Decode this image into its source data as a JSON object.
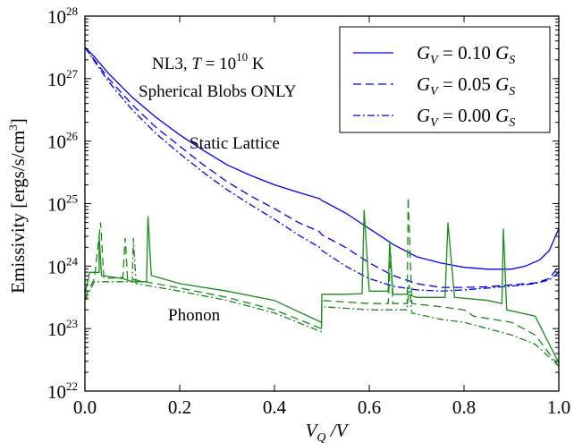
{
  "chart_data": {
    "type": "line",
    "title": "",
    "xlabel": {
      "main": "V",
      "sub": "Q",
      "suffix": " /V"
    },
    "ylabel": {
      "main": "Emissivity [ergs/s/cm",
      "sup": "3",
      "end": "]"
    },
    "xlim": [
      0.0,
      1.0
    ],
    "ylim_log10": [
      22,
      28
    ],
    "yscale": "log",
    "xticks": [
      "0.0",
      "0.2",
      "0.4",
      "0.6",
      "0.8",
      "1.0"
    ],
    "yticks": [
      {
        "base": "10",
        "exp": "22"
      },
      {
        "base": "10",
        "exp": "23"
      },
      {
        "base": "10",
        "exp": "24"
      },
      {
        "base": "10",
        "exp": "25"
      },
      {
        "base": "10",
        "exp": "26"
      },
      {
        "base": "10",
        "exp": "27"
      },
      {
        "base": "10",
        "exp": "28"
      }
    ],
    "annotations": {
      "model": {
        "prefix": "NL3, ",
        "var": "T",
        "eq": " = 10",
        "exp": "10",
        "unit": " K"
      },
      "shape": "Spherical Blobs ONLY",
      "static": "Static Lattice",
      "phonon": "Phonon"
    },
    "legend": {
      "position": "top-right",
      "entries": [
        {
          "lhs": "G",
          "lhs_sub": "V",
          "mid": " = 0.10 ",
          "rhs": "G",
          "rhs_sub": "S",
          "style": "solid"
        },
        {
          "lhs": "G",
          "lhs_sub": "V",
          "mid": " = 0.05 ",
          "rhs": "G",
          "rhs_sub": "S",
          "style": "dashed"
        },
        {
          "lhs": "G",
          "lhs_sub": "V",
          "mid": " = 0.00 ",
          "rhs": "G",
          "rhs_sub": "S",
          "style": "dashdot"
        }
      ]
    },
    "colors": {
      "static_lattice": "#0000ee",
      "phonon": "#1a8a1a"
    },
    "series": [
      {
        "group": "static",
        "style": "solid",
        "color": "#0000ee",
        "points": [
          [
            0.0,
            27.5
          ],
          [
            0.02,
            27.35
          ],
          [
            0.05,
            27.08
          ],
          [
            0.1,
            26.7
          ],
          [
            0.15,
            26.38
          ],
          [
            0.2,
            26.1
          ],
          [
            0.25,
            25.85
          ],
          [
            0.3,
            25.62
          ],
          [
            0.35,
            25.45
          ],
          [
            0.4,
            25.3
          ],
          [
            0.45,
            25.18
          ],
          [
            0.495,
            25.08
          ],
          [
            0.5,
            25.05
          ],
          [
            0.55,
            24.85
          ],
          [
            0.6,
            24.6
          ],
          [
            0.65,
            24.35
          ],
          [
            0.7,
            24.15
          ],
          [
            0.75,
            24.05
          ],
          [
            0.8,
            23.98
          ],
          [
            0.85,
            23.95
          ],
          [
            0.9,
            23.95
          ],
          [
            0.93,
            24.0
          ],
          [
            0.96,
            24.1
          ],
          [
            0.98,
            24.25
          ],
          [
            1.0,
            24.6
          ]
        ]
      },
      {
        "group": "static",
        "style": "dashed",
        "color": "#0000ee",
        "points": [
          [
            0.0,
            27.5
          ],
          [
            0.02,
            27.3
          ],
          [
            0.05,
            27.0
          ],
          [
            0.1,
            26.58
          ],
          [
            0.15,
            26.22
          ],
          [
            0.2,
            25.92
          ],
          [
            0.25,
            25.62
          ],
          [
            0.3,
            25.35
          ],
          [
            0.35,
            25.12
          ],
          [
            0.4,
            24.92
          ],
          [
            0.45,
            24.7
          ],
          [
            0.495,
            24.55
          ],
          [
            0.5,
            24.5
          ],
          [
            0.55,
            24.3
          ],
          [
            0.6,
            24.05
          ],
          [
            0.65,
            23.85
          ],
          [
            0.7,
            23.72
          ],
          [
            0.75,
            23.66
          ],
          [
            0.8,
            23.66
          ],
          [
            0.85,
            23.67
          ],
          [
            0.9,
            23.7
          ],
          [
            0.95,
            23.73
          ],
          [
            0.98,
            23.8
          ],
          [
            1.0,
            24.0
          ]
        ]
      },
      {
        "group": "static",
        "style": "dashdot",
        "color": "#0000ee",
        "points": [
          [
            0.0,
            27.5
          ],
          [
            0.02,
            27.28
          ],
          [
            0.05,
            26.95
          ],
          [
            0.1,
            26.5
          ],
          [
            0.15,
            26.12
          ],
          [
            0.2,
            25.8
          ],
          [
            0.25,
            25.5
          ],
          [
            0.3,
            25.22
          ],
          [
            0.35,
            24.98
          ],
          [
            0.4,
            24.75
          ],
          [
            0.45,
            24.5
          ],
          [
            0.495,
            24.3
          ],
          [
            0.5,
            24.25
          ],
          [
            0.55,
            24.0
          ],
          [
            0.6,
            23.8
          ],
          [
            0.65,
            23.68
          ],
          [
            0.7,
            23.62
          ],
          [
            0.75,
            23.6
          ],
          [
            0.8,
            23.62
          ],
          [
            0.85,
            23.65
          ],
          [
            0.9,
            23.68
          ],
          [
            0.95,
            23.72
          ],
          [
            0.98,
            23.78
          ],
          [
            1.0,
            23.9
          ]
        ]
      },
      {
        "group": "phonon",
        "style": "solid",
        "color": "#1a8a1a",
        "points": [
          [
            0.0,
            23.55
          ],
          [
            0.01,
            23.9
          ],
          [
            0.03,
            23.9
          ],
          [
            0.03,
            24.5
          ],
          [
            0.035,
            23.85
          ],
          [
            0.08,
            23.8
          ],
          [
            0.1,
            23.75
          ],
          [
            0.13,
            23.75
          ],
          [
            0.133,
            24.8
          ],
          [
            0.14,
            23.85
          ],
          [
            0.2,
            23.72
          ],
          [
            0.3,
            23.6
          ],
          [
            0.4,
            23.45
          ],
          [
            0.499,
            23.1
          ],
          [
            0.5,
            23.55
          ],
          [
            0.55,
            23.55
          ],
          [
            0.585,
            23.56
          ],
          [
            0.589,
            24.9
          ],
          [
            0.6,
            23.6
          ],
          [
            0.64,
            23.6
          ],
          [
            0.643,
            24.4
          ],
          [
            0.65,
            23.55
          ],
          [
            0.68,
            23.55
          ],
          [
            0.7,
            23.5
          ],
          [
            0.76,
            23.5
          ],
          [
            0.766,
            24.7
          ],
          [
            0.78,
            23.5
          ],
          [
            0.85,
            23.45
          ],
          [
            0.88,
            23.4
          ],
          [
            0.883,
            24.6
          ],
          [
            0.89,
            23.3
          ],
          [
            0.95,
            23.2
          ],
          [
            0.97,
            22.9
          ],
          [
            1.0,
            22.45
          ]
        ]
      },
      {
        "group": "phonon",
        "style": "dashed",
        "color": "#1a8a1a",
        "points": [
          [
            0.0,
            23.5
          ],
          [
            0.02,
            23.8
          ],
          [
            0.033,
            24.7
          ],
          [
            0.04,
            23.8
          ],
          [
            0.08,
            23.82
          ],
          [
            0.085,
            24.45
          ],
          [
            0.09,
            23.8
          ],
          [
            0.2,
            23.65
          ],
          [
            0.3,
            23.5
          ],
          [
            0.4,
            23.3
          ],
          [
            0.499,
            23.0
          ],
          [
            0.5,
            23.45
          ],
          [
            0.6,
            23.4
          ],
          [
            0.64,
            23.4
          ],
          [
            0.645,
            24.2
          ],
          [
            0.65,
            23.4
          ],
          [
            0.68,
            23.4
          ],
          [
            0.682,
            25.1
          ],
          [
            0.69,
            23.4
          ],
          [
            0.75,
            23.35
          ],
          [
            0.8,
            23.3
          ],
          [
            0.82,
            23.2
          ],
          [
            0.9,
            23.1
          ],
          [
            0.95,
            22.9
          ],
          [
            1.0,
            22.4
          ]
        ]
      },
      {
        "group": "phonon",
        "style": "dashdot",
        "color": "#1a8a1a",
        "points": [
          [
            0.0,
            23.45
          ],
          [
            0.02,
            23.75
          ],
          [
            0.1,
            23.75
          ],
          [
            0.102,
            24.45
          ],
          [
            0.108,
            23.72
          ],
          [
            0.2,
            23.6
          ],
          [
            0.3,
            23.45
          ],
          [
            0.4,
            23.25
          ],
          [
            0.499,
            22.95
          ],
          [
            0.5,
            23.35
          ],
          [
            0.6,
            23.3
          ],
          [
            0.68,
            23.3
          ],
          [
            0.684,
            23.7
          ],
          [
            0.69,
            23.25
          ],
          [
            0.75,
            23.15
          ],
          [
            0.8,
            23.1
          ],
          [
            0.85,
            23.0
          ],
          [
            0.9,
            22.9
          ],
          [
            0.95,
            22.75
          ],
          [
            1.0,
            22.4
          ]
        ]
      }
    ]
  }
}
